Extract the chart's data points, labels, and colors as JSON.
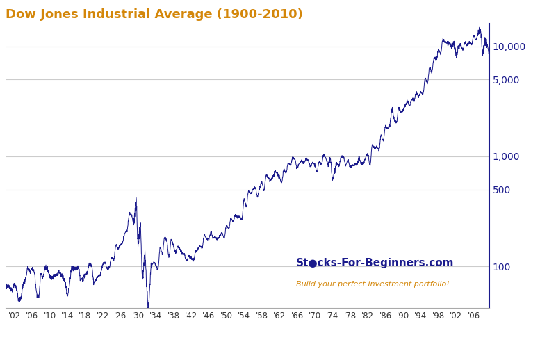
{
  "title": "Dow Jones Industrial Average (1900-2010)",
  "title_color": "#d4870a",
  "line_color": "#1a1a8c",
  "background_color": "#ffffff",
  "grid_color": "#cccccc",
  "watermark_main": "St●cks-For-Beginners.com",
  "watermark_sub": "Build your perfect investment portfolio!",
  "watermark_main_color": "#1a1a8c",
  "watermark_sub_color": "#d4870a",
  "yticks": [
    100,
    500,
    1000,
    5000,
    10000
  ],
  "ytick_labels": [
    "100",
    "500",
    "1,000",
    "5,000",
    "10,000"
  ],
  "xlim_start": 1900,
  "xlim_end": 2009.5,
  "ylim_bottom": 42,
  "ylim_top": 16000,
  "xtick_years": [
    1902,
    1906,
    1910,
    1914,
    1918,
    1922,
    1926,
    1930,
    1934,
    1938,
    1942,
    1946,
    1950,
    1954,
    1958,
    1962,
    1966,
    1970,
    1974,
    1978,
    1982,
    1986,
    1990,
    1994,
    1998,
    2002,
    2006
  ],
  "xtick_labels": [
    "'02",
    "'06",
    "'10",
    "'14",
    "'18",
    "'22",
    "'26",
    "'30",
    "'34",
    "'38",
    "'42",
    "'46",
    "'50",
    "'54",
    "'58",
    "'62",
    "'66",
    "'70",
    "'74",
    "'78",
    "'82",
    "'86",
    "'90",
    "'94",
    "'98",
    "'02",
    "'06"
  ]
}
